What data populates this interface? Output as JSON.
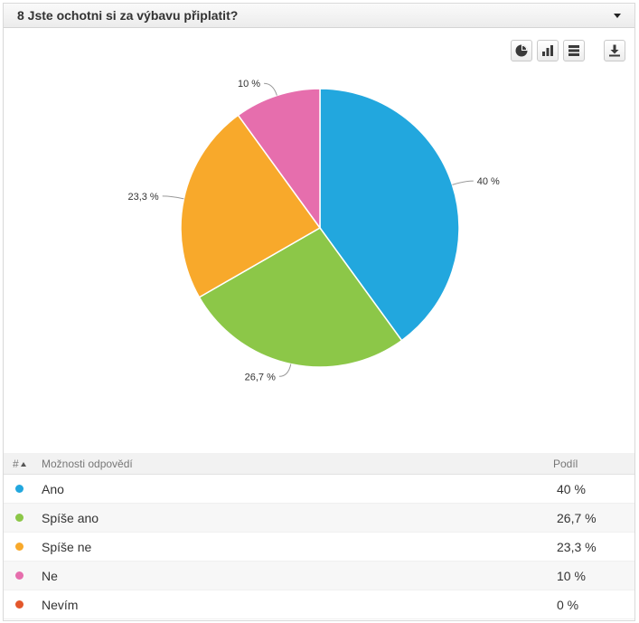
{
  "header": {
    "title": "8 Jste ochotni si za výbavu připlatit?"
  },
  "toolbar": {
    "buttons": [
      "pie-chart-icon",
      "bar-chart-icon",
      "table-icon",
      "download-icon"
    ]
  },
  "chart_data": {
    "type": "pie",
    "title": "",
    "categories": [
      "Ano",
      "Spíše ano",
      "Spíše ne",
      "Ne",
      "Nevím"
    ],
    "values": [
      40,
      26.7,
      23.3,
      10,
      0
    ],
    "labels": [
      "40 %",
      "26,7 %",
      "23,3 %",
      "10 %",
      ""
    ],
    "colors": [
      "#22a7de",
      "#8cc748",
      "#f8a92b",
      "#e66ead",
      "#e3572b"
    ],
    "start": "12 o'clock",
    "direction": "clockwise"
  },
  "table": {
    "col_index": "#",
    "col_label": "Možnosti odpovědí",
    "col_share": "Podíl",
    "rows": [
      {
        "label": "Ano",
        "share": "40 %",
        "color": "#22a7de"
      },
      {
        "label": "Spíše ano",
        "share": "26,7 %",
        "color": "#8cc748"
      },
      {
        "label": "Spíše ne",
        "share": "23,3 %",
        "color": "#f8a92b"
      },
      {
        "label": "Ne",
        "share": "10 %",
        "color": "#e66ead"
      },
      {
        "label": "Nevím",
        "share": "0 %",
        "color": "#e3572b"
      }
    ]
  }
}
